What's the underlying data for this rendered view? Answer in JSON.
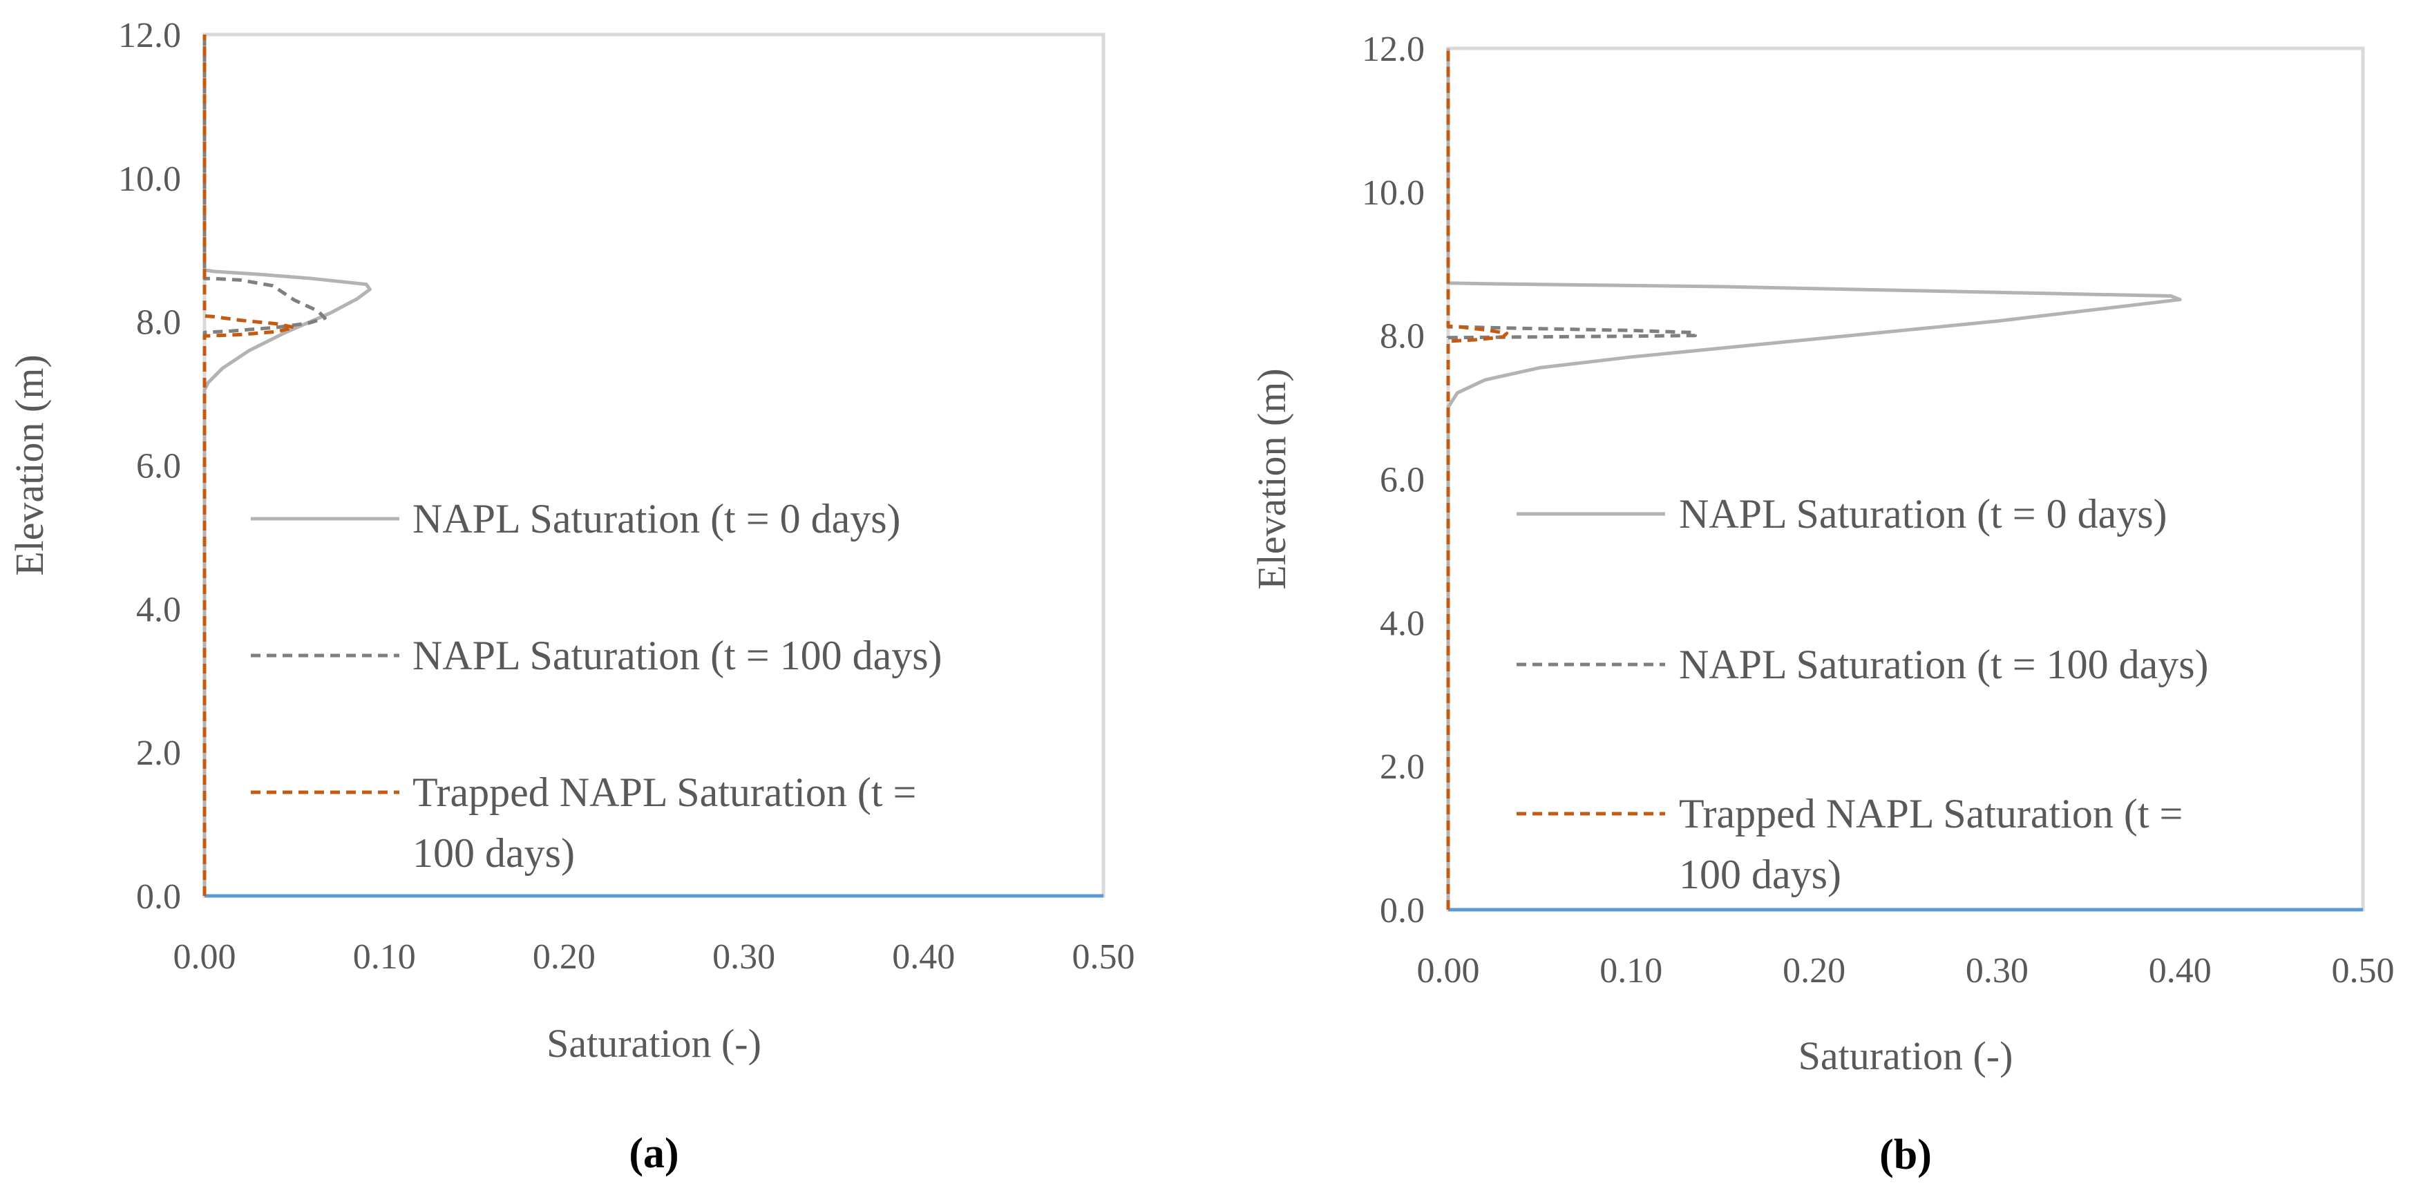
{
  "chart_data": [
    {
      "type": "line",
      "caption": "(a)",
      "xlabel": "Saturation (-)",
      "ylabel": "Elevation (m)",
      "xlim": [
        0,
        0.5
      ],
      "ylim": [
        0,
        12
      ],
      "xticks": [
        "0.00",
        "0.10",
        "0.20",
        "0.30",
        "0.40",
        "0.50"
      ],
      "yticks": [
        "0.0",
        "2.0",
        "4.0",
        "6.0",
        "8.0",
        "10.0",
        "12.0"
      ],
      "legend_position": "center-right",
      "series": [
        {
          "name": "NAPL Saturation (t = 0 days)",
          "style": "solid",
          "color": "#b3b3b3",
          "points": [
            [
              0,
              0
            ],
            [
              0,
              7.05
            ],
            [
              0.002,
              7.15
            ],
            [
              0.01,
              7.35
            ],
            [
              0.025,
              7.6
            ],
            [
              0.045,
              7.85
            ],
            [
              0.07,
              8.12
            ],
            [
              0.085,
              8.32
            ],
            [
              0.092,
              8.45
            ],
            [
              0.09,
              8.52
            ],
            [
              0.06,
              8.6
            ],
            [
              0.03,
              8.66
            ],
            [
              0.005,
              8.7
            ],
            [
              0,
              8.72
            ],
            [
              0,
              12
            ]
          ]
        },
        {
          "name": "NAPL Saturation (t = 100 days)",
          "style": "dashed",
          "color": "#7f7f7f",
          "points": [
            [
              0,
              0
            ],
            [
              0,
              7.85
            ],
            [
              0.015,
              7.87
            ],
            [
              0.04,
              7.92
            ],
            [
              0.058,
              7.98
            ],
            [
              0.067,
              8.05
            ],
            [
              0.063,
              8.15
            ],
            [
              0.05,
              8.3
            ],
            [
              0.038,
              8.5
            ],
            [
              0.02,
              8.58
            ],
            [
              0.005,
              8.6
            ],
            [
              0,
              8.6
            ],
            [
              0,
              12
            ]
          ]
        },
        {
          "name": "Trapped NAPL Saturation  (t = 100 days)",
          "style": "dashed",
          "color": "#c55a11",
          "points": [
            [
              0,
              0
            ],
            [
              0,
              7.8
            ],
            [
              0.02,
              7.82
            ],
            [
              0.04,
              7.86
            ],
            [
              0.05,
              7.92
            ],
            [
              0.04,
              7.97
            ],
            [
              0.02,
              8.02
            ],
            [
              0.005,
              8.07
            ],
            [
              0,
              8.08
            ],
            [
              0,
              12
            ]
          ]
        }
      ]
    },
    {
      "type": "line",
      "caption": "(b)",
      "xlabel": "Saturation (-)",
      "ylabel": "Elevation (m)",
      "xlim": [
        0,
        0.5
      ],
      "ylim": [
        0,
        12
      ],
      "xticks": [
        "0.00",
        "0.10",
        "0.20",
        "0.30",
        "0.40",
        "0.50"
      ],
      "yticks": [
        "0.0",
        "2.0",
        "4.0",
        "6.0",
        "8.0",
        "10.0",
        "12.0"
      ],
      "legend_position": "center-right",
      "series": [
        {
          "name": "NAPL Saturation (t = 0 days)",
          "style": "solid",
          "color": "#b3b3b3",
          "points": [
            [
              0,
              0
            ],
            [
              0,
              7.0
            ],
            [
              0.005,
              7.2
            ],
            [
              0.02,
              7.38
            ],
            [
              0.05,
              7.55
            ],
            [
              0.1,
              7.7
            ],
            [
              0.2,
              7.95
            ],
            [
              0.3,
              8.2
            ],
            [
              0.4,
              8.5
            ],
            [
              0.395,
              8.55
            ],
            [
              0.3,
              8.6
            ],
            [
              0.15,
              8.68
            ],
            [
              0.02,
              8.72
            ],
            [
              0,
              8.73
            ],
            [
              0,
              12
            ]
          ]
        },
        {
          "name": "NAPL Saturation (t = 100 days)",
          "style": "dashed",
          "color": "#7f7f7f",
          "points": [
            [
              0,
              0
            ],
            [
              0,
              7.97
            ],
            [
              0.05,
              7.98
            ],
            [
              0.1,
              7.99
            ],
            [
              0.135,
              8.0
            ],
            [
              0.135,
              8.04
            ],
            [
              0.1,
              8.07
            ],
            [
              0.04,
              8.1
            ],
            [
              0.005,
              8.12
            ],
            [
              0,
              8.12
            ],
            [
              0,
              12
            ]
          ]
        },
        {
          "name": "Trapped NAPL Saturation  (t = 100 days)",
          "style": "dashed",
          "color": "#c55a11",
          "points": [
            [
              0,
              0
            ],
            [
              0,
              7.92
            ],
            [
              0.015,
              7.94
            ],
            [
              0.03,
              7.98
            ],
            [
              0.032,
              8.03
            ],
            [
              0.02,
              8.08
            ],
            [
              0.006,
              8.12
            ],
            [
              0,
              8.13
            ],
            [
              0,
              12
            ]
          ]
        }
      ]
    }
  ],
  "legend": {
    "a": [
      [
        "NAPL Saturation (t = 0 days)"
      ],
      [
        "NAPL Saturation (t = 100 days)"
      ],
      [
        "Trapped NAPL Saturation  (t =",
        "100 days)"
      ]
    ],
    "b": [
      [
        "NAPL Saturation (t = 0 days)"
      ],
      [
        "NAPL Saturation (t = 100 days)"
      ],
      [
        "Trapped NAPL Saturation  (t =",
        "100 days)"
      ]
    ]
  },
  "colors": {
    "frame": "#d9d9d9",
    "x_axis": "#5b9bd5",
    "y_axis_line": "#c55a11"
  }
}
